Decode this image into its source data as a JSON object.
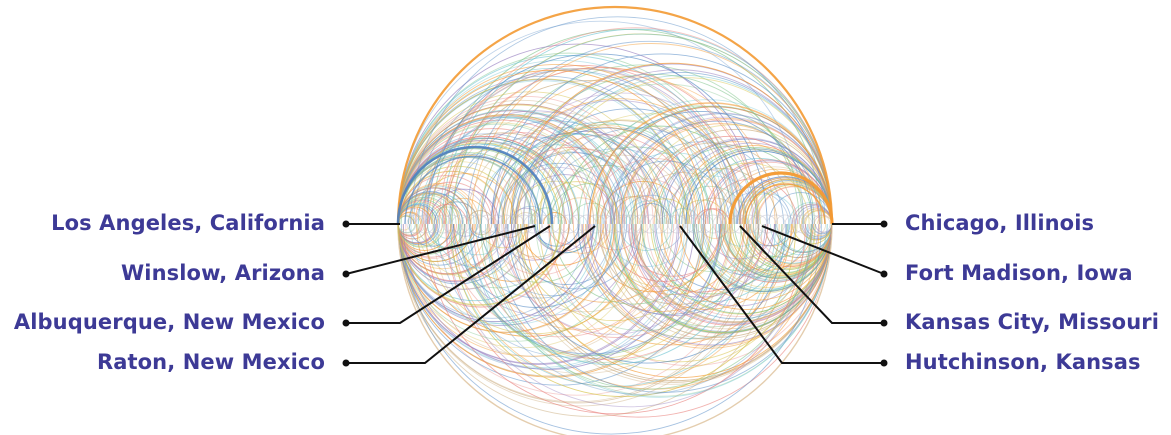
{
  "stops_left": [
    "Los Angeles, California",
    "Winslow, Arizona",
    "Albuquerque, New Mexico",
    "Raton, New Mexico"
  ],
  "stops_right": [
    "Chicago, Illinois",
    "Fort Madison, Iowa",
    "Kansas City, Missouri",
    "Hutchinson, Kansas"
  ],
  "colors": {
    "label": "#3d3a96",
    "leader": "#111111",
    "arc_palette": [
      "#f39a33",
      "#5b8fc7",
      "#d7c24a",
      "#7fc48a",
      "#e9827d",
      "#9b84c2",
      "#67c1cf",
      "#c9a97a"
    ],
    "arc_highlight_orange": "#f39a33",
    "arc_highlight_blue": "#4f81bf"
  }
}
